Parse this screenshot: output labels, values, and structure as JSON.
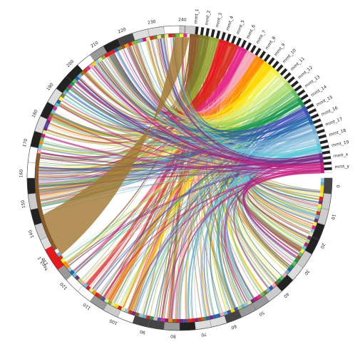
{
  "right_labels": [
    "mmt_1",
    "mmt_2",
    "mmt_3",
    "mmt_4",
    "mmt_5",
    "mmt_6",
    "mmt_7",
    "mmt_8",
    "mmt_9",
    "mmt_10",
    "mmt_11",
    "mmt_12",
    "mmt_13",
    "mmt_14",
    "mmt_15",
    "mmt_16",
    "mmt_17",
    "mmt_18",
    "mmt_19",
    "mmt_x",
    "mmt_y"
  ],
  "ring_ticks": [
    "0",
    "10",
    "20",
    "30",
    "40",
    "50",
    "60",
    "70",
    "80",
    "90",
    "100",
    "110",
    "120",
    "130",
    "140",
    "150",
    "160",
    "170",
    "180",
    "190",
    "200",
    "210",
    "220",
    "230",
    "240"
  ],
  "left_label": "hsp3_1",
  "colors": [
    "#8b5a2b",
    "#7d7d2a",
    "#9aa53a",
    "#e41a1c",
    "#d7301f",
    "#e7298a",
    "#f4a6b7",
    "#ff8c00",
    "#ffd700",
    "#f5f03a",
    "#d9ef8b",
    "#a6d96a",
    "#66bd63",
    "#1a9850",
    "#3f51b5",
    "#2166ac",
    "#74add1",
    "#92c5de",
    "#5ec8d8",
    "#762a83",
    "#c51b7d"
  ]
}
